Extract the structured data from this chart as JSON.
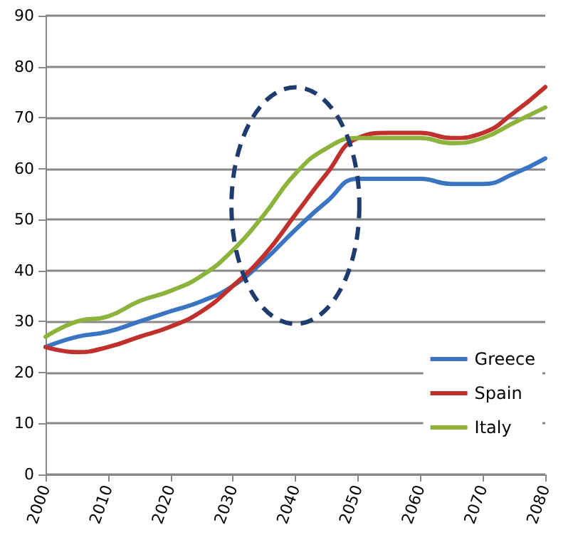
{
  "chart_data": {
    "type": "line",
    "x": [
      2000,
      2005,
      2010,
      2015,
      2020,
      2025,
      2030,
      2035,
      2040,
      2045,
      2050,
      2055,
      2060,
      2065,
      2070,
      2075,
      2080
    ],
    "series": [
      {
        "name": "Greece",
        "color": "#3a75c4",
        "values": [
          25,
          27,
          28,
          30,
          32,
          34,
          37,
          42,
          48,
          53.5,
          58,
          58,
          58,
          57,
          57,
          59,
          62
        ]
      },
      {
        "name": "Spain",
        "color": "#c0302c",
        "values": [
          25,
          24,
          25,
          27,
          29,
          32,
          37,
          43,
          51,
          59,
          66,
          67,
          67,
          66,
          67,
          71,
          76
        ]
      },
      {
        "name": "Italy",
        "color": "#8cb43c",
        "values": [
          27,
          30,
          31,
          34,
          36,
          39,
          44,
          51,
          59,
          64,
          66,
          66,
          66,
          65,
          66,
          69,
          72
        ]
      }
    ],
    "xlim": [
      2000,
      2080
    ],
    "xticks": [
      2000,
      2010,
      2020,
      2030,
      2040,
      2050,
      2060,
      2070,
      2080
    ],
    "ylim": [
      0,
      90
    ],
    "yticks": [
      0,
      10,
      20,
      30,
      40,
      50,
      60,
      70,
      80,
      90
    ],
    "grid": "y",
    "legend": "bottom right",
    "marker": "none",
    "line_style": "solid"
  }
}
